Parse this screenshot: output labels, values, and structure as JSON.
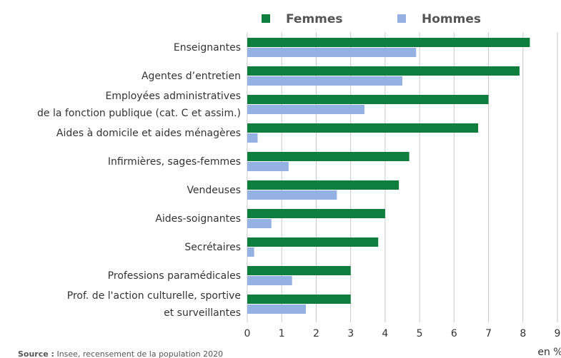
{
  "chart_data": {
    "type": "bar",
    "orientation": "horizontal",
    "categories": [
      "Enseignantes",
      "Agentes d’entretien",
      "Employées administratives\nde la fonction publique (cat. C et assim.)",
      "Aides à domicile et aides ménagères",
      "Infirmières, sages-femmes",
      "Vendeuses",
      "Aides-soignantes",
      "Secrétaires",
      "Professions paramédicales",
      "Prof. de l'action culturelle, sportive\net surveillantes"
    ],
    "series": [
      {
        "name": "Femmes",
        "color": "#0f7d3e",
        "values": [
          8.2,
          7.9,
          7.0,
          6.7,
          4.7,
          4.4,
          4.0,
          3.8,
          3.0,
          3.0
        ]
      },
      {
        "name": "Hommes",
        "color": "#94b1e2",
        "values": [
          4.9,
          4.5,
          3.4,
          0.3,
          1.2,
          2.6,
          0.7,
          0.2,
          1.3,
          1.7
        ]
      }
    ],
    "xlim": [
      0,
      9
    ],
    "xticks": [
      0,
      1,
      2,
      3,
      4,
      5,
      6,
      7,
      8,
      9
    ],
    "grid": true,
    "x_unit": "en %",
    "source": {
      "label": "Source :",
      "text": "Insee, recensement de la population 2020"
    }
  }
}
